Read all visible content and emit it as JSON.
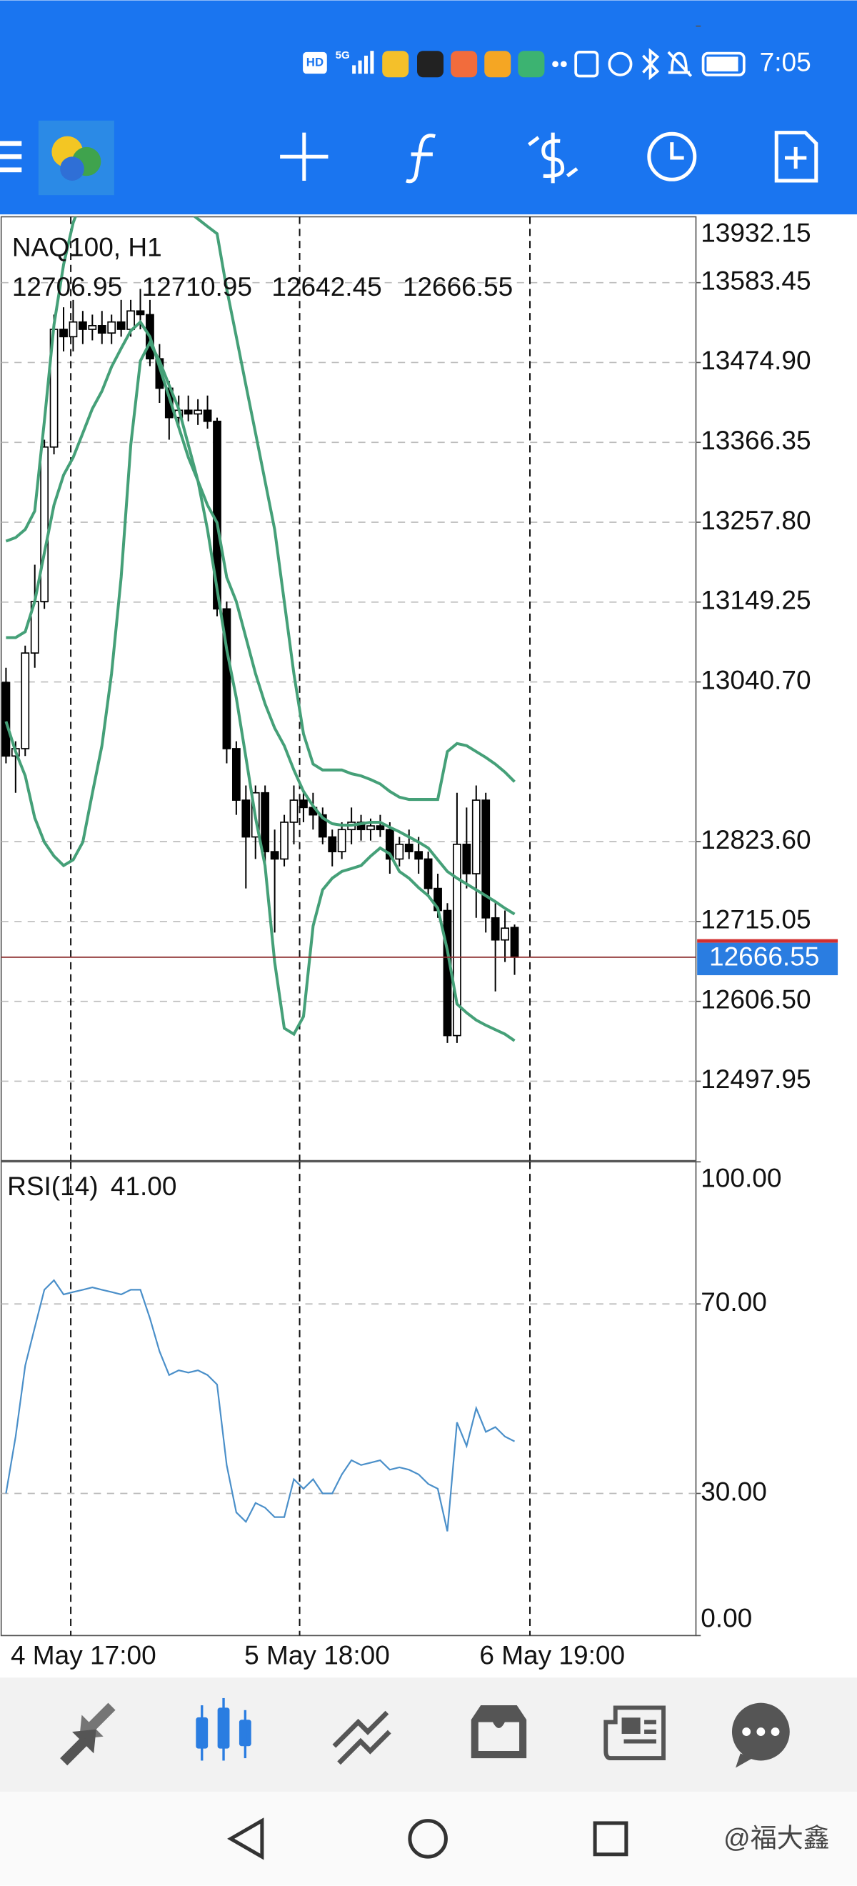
{
  "status_bar": {
    "network": [
      "HD",
      "5G"
    ],
    "time": "7:05"
  },
  "chart_data": [
    {
      "type": "candlestick",
      "title": "NAQ100, H1",
      "open": [
        13040,
        12940,
        12950,
        13080,
        13150,
        13360,
        13520,
        13510,
        13530,
        13520,
        13525,
        13515,
        13530,
        13520,
        13545,
        13540,
        13480,
        13440,
        13400,
        13410,
        13405,
        13410,
        13395,
        13140,
        12950,
        12880,
        12830,
        12890,
        12810,
        12800,
        12850,
        12880,
        12870,
        12860,
        12830,
        12810,
        12840,
        12850,
        12840,
        12845,
        12840,
        12800,
        12820,
        12810,
        12800,
        12760,
        12730,
        12560,
        12820,
        12780,
        12880,
        12720,
        12690,
        12706.95
      ],
      "high": [
        13060,
        12960,
        13090,
        13200,
        13370,
        13540,
        13550,
        13560,
        13545,
        13540,
        13545,
        13540,
        13560,
        13560,
        13575,
        13560,
        13500,
        13450,
        13430,
        13430,
        13425,
        13430,
        13400,
        13150,
        12960,
        12900,
        12900,
        12900,
        12840,
        12860,
        12900,
        12890,
        12890,
        12870,
        12840,
        12850,
        12870,
        12860,
        12855,
        12860,
        12850,
        12830,
        12840,
        12830,
        12810,
        12780,
        12740,
        12890,
        12870,
        12900,
        12890,
        12740,
        12730,
        12710.95
      ],
      "low": [
        12930,
        12890,
        12940,
        13060,
        13140,
        13350,
        13490,
        13490,
        13500,
        13505,
        13500,
        13500,
        13510,
        13510,
        13520,
        13470,
        13420,
        13370,
        13390,
        13395,
        13390,
        13385,
        13130,
        12930,
        12860,
        12760,
        12800,
        12790,
        12700,
        12790,
        12820,
        12850,
        12840,
        12820,
        12790,
        12800,
        12820,
        12825,
        12825,
        12830,
        12780,
        12790,
        12800,
        12780,
        12750,
        12720,
        12550,
        12550,
        12760,
        12720,
        12700,
        12620,
        12660,
        12642.45
      ],
      "close": [
        12940,
        12950,
        13080,
        13150,
        13360,
        13520,
        13510,
        13530,
        13520,
        13525,
        13515,
        13530,
        13520,
        13545,
        13540,
        13480,
        13440,
        13400,
        13410,
        13405,
        13410,
        13395,
        13140,
        12950,
        12880,
        12830,
        12890,
        12810,
        12800,
        12850,
        12880,
        12870,
        12860,
        12830,
        12810,
        12840,
        12850,
        12840,
        12845,
        12840,
        12800,
        12820,
        12810,
        12800,
        12760,
        12730,
        12560,
        12820,
        12780,
        12880,
        12720,
        12690,
        12706,
        12666.55
      ],
      "bands": {
        "color": "#45a078",
        "upper": [
          13232,
          13237,
          13248,
          13273,
          13395,
          13526,
          13608,
          13665,
          13700,
          13720,
          13735,
          13745,
          13750,
          13745,
          13735,
          13720,
          13710,
          13700,
          13690,
          13680,
          13670,
          13660,
          13650,
          13575,
          13510,
          13444,
          13379,
          13314,
          13248,
          13150,
          13052,
          12970,
          12929,
          12921,
          12921,
          12921,
          12916,
          12913,
          12908,
          12902,
          12892,
          12884,
          12881,
          12881,
          12881,
          12881,
          12946,
          12957,
          12954,
          12946,
          12938,
          12929,
          12918,
          12905
        ],
        "middle": [
          13101,
          13101,
          13109,
          13150,
          13216,
          13281,
          13322,
          13346,
          13379,
          13412,
          13436,
          13469,
          13494,
          13518,
          13530,
          13510,
          13469,
          13428,
          13387,
          13346,
          13314,
          13281,
          13257,
          13183,
          13150,
          13101,
          13052,
          13011,
          12978,
          12954,
          12921,
          12892,
          12872,
          12856,
          12848,
          12846,
          12846,
          12848,
          12850,
          12850,
          12843,
          12837,
          12830,
          12823,
          12815,
          12799,
          12783,
          12774,
          12766,
          12758,
          12750,
          12742,
          12733,
          12725
        ],
        "lower": [
          12987,
          12946,
          12913,
          12856,
          12823,
          12804,
          12791,
          12799,
          12823,
          12889,
          12954,
          13052,
          13183,
          13363,
          13477,
          13502,
          13477,
          13444,
          13412,
          13363,
          13314,
          13248,
          13167,
          13085,
          13019,
          12938,
          12856,
          12791,
          12660,
          12570,
          12562,
          12586,
          12709,
          12758,
          12774,
          12783,
          12787,
          12791,
          12804,
          12815,
          12807,
          12783,
          12774,
          12761,
          12750,
          12733,
          12676,
          12603,
          12591,
          12581,
          12574,
          12568,
          12562,
          12553
        ]
      },
      "xlim": [
        -0.5,
        71.9
      ],
      "xticks": [
        {
          "value": 6.75,
          "label": "4 May 17:00"
        },
        {
          "value": 30.6,
          "label": "5 May 18:00"
        },
        {
          "value": 54.6,
          "label": "6 May 19:00"
        }
      ],
      "ylim": [
        12390,
        13673
      ],
      "yticks": [
        13583.45,
        {
          "value": 13474.9,
          "label": "13474.90"
        },
        13366.35,
        {
          "value": 13257.8,
          "label": "13257.80"
        },
        13149.25,
        {
          "value": 13040.7,
          "label": "13040.70"
        },
        13932.15,
        {
          "value": 12823.6,
          "label": "12823.60"
        },
        12715.05,
        {
          "value": 12606.5,
          "label": "12606.50"
        },
        12497.95
      ]
    },
    {
      "type": "line",
      "title": "RSI(14)",
      "current_label": "41.00",
      "color": "#4a8fc9",
      "values": [
        30,
        42,
        57,
        65,
        73,
        75,
        72,
        72.5,
        73,
        73.5,
        73,
        72.5,
        72,
        73,
        73,
        67,
        60,
        55,
        56,
        55.5,
        56,
        55,
        53,
        36,
        26,
        24,
        28,
        27,
        25,
        25,
        33,
        31,
        33,
        30,
        30,
        34,
        37,
        36,
        36.5,
        37,
        35,
        35.5,
        35,
        34,
        32,
        31,
        22,
        45,
        40,
        48,
        43,
        44,
        42,
        41
      ],
      "xlim": [
        -0.5,
        71.9
      ],
      "ylim": [
        0,
        100
      ],
      "yticks": [
        {
          "value": 100,
          "label": "100.00"
        },
        {
          "value": 70,
          "label": "70.00"
        },
        {
          "value": 30,
          "label": "30.00"
        },
        {
          "value": 0,
          "label": "0.00"
        }
      ]
    }
  ],
  "watermark": "@福大鑫"
}
